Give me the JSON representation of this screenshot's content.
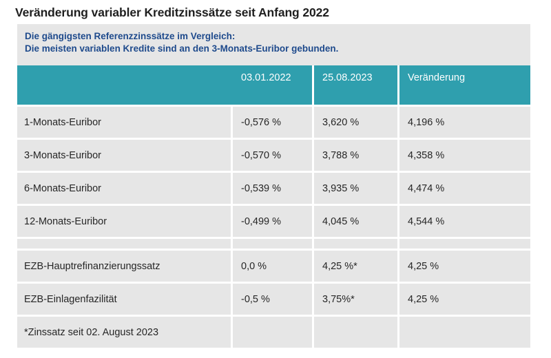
{
  "title": "Veränderung variabler Kreditzinssätze seit Anfang 2022",
  "subtitle": {
    "line1": "Die gängigsten Referenzzinssätze im Vergleich:",
    "line2": "Die meisten variablen Kredite sind an den 3-Monats-Euribor gebunden."
  },
  "table": {
    "headers": [
      "",
      "03.01.2022",
      "25.08.2023",
      "Veränderung"
    ],
    "rows": [
      [
        "1-Monats-Euribor",
        "-0,576 %",
        "3,620 %",
        "4,196 %"
      ],
      [
        "3-Monats-Euribor",
        "-0,570 %",
        "3,788 %",
        "4,358 %"
      ],
      [
        "6-Monats-Euribor",
        "-0,539 %",
        "3,935 %",
        "4,474 %"
      ],
      [
        "12-Monats-Euribor",
        "-0,499 %",
        "4,045 %",
        "4,544 %"
      ],
      [
        "",
        "",
        "",
        ""
      ],
      [
        "EZB-Hauptrefinanzierungssatz",
        "0,0 %",
        "4,25 %*",
        "4,25 %"
      ],
      [
        "EZB-Einlagenfazilität",
        "-0,5 %",
        "3,75%*",
        "4,25 %"
      ]
    ],
    "footnote": "*Zinssatz seit 02. August 2023"
  },
  "colors": {
    "header_bg": "#2f9fae",
    "subtitle_text": "#1e4a8c",
    "panel_bg": "#e6e6e6"
  }
}
